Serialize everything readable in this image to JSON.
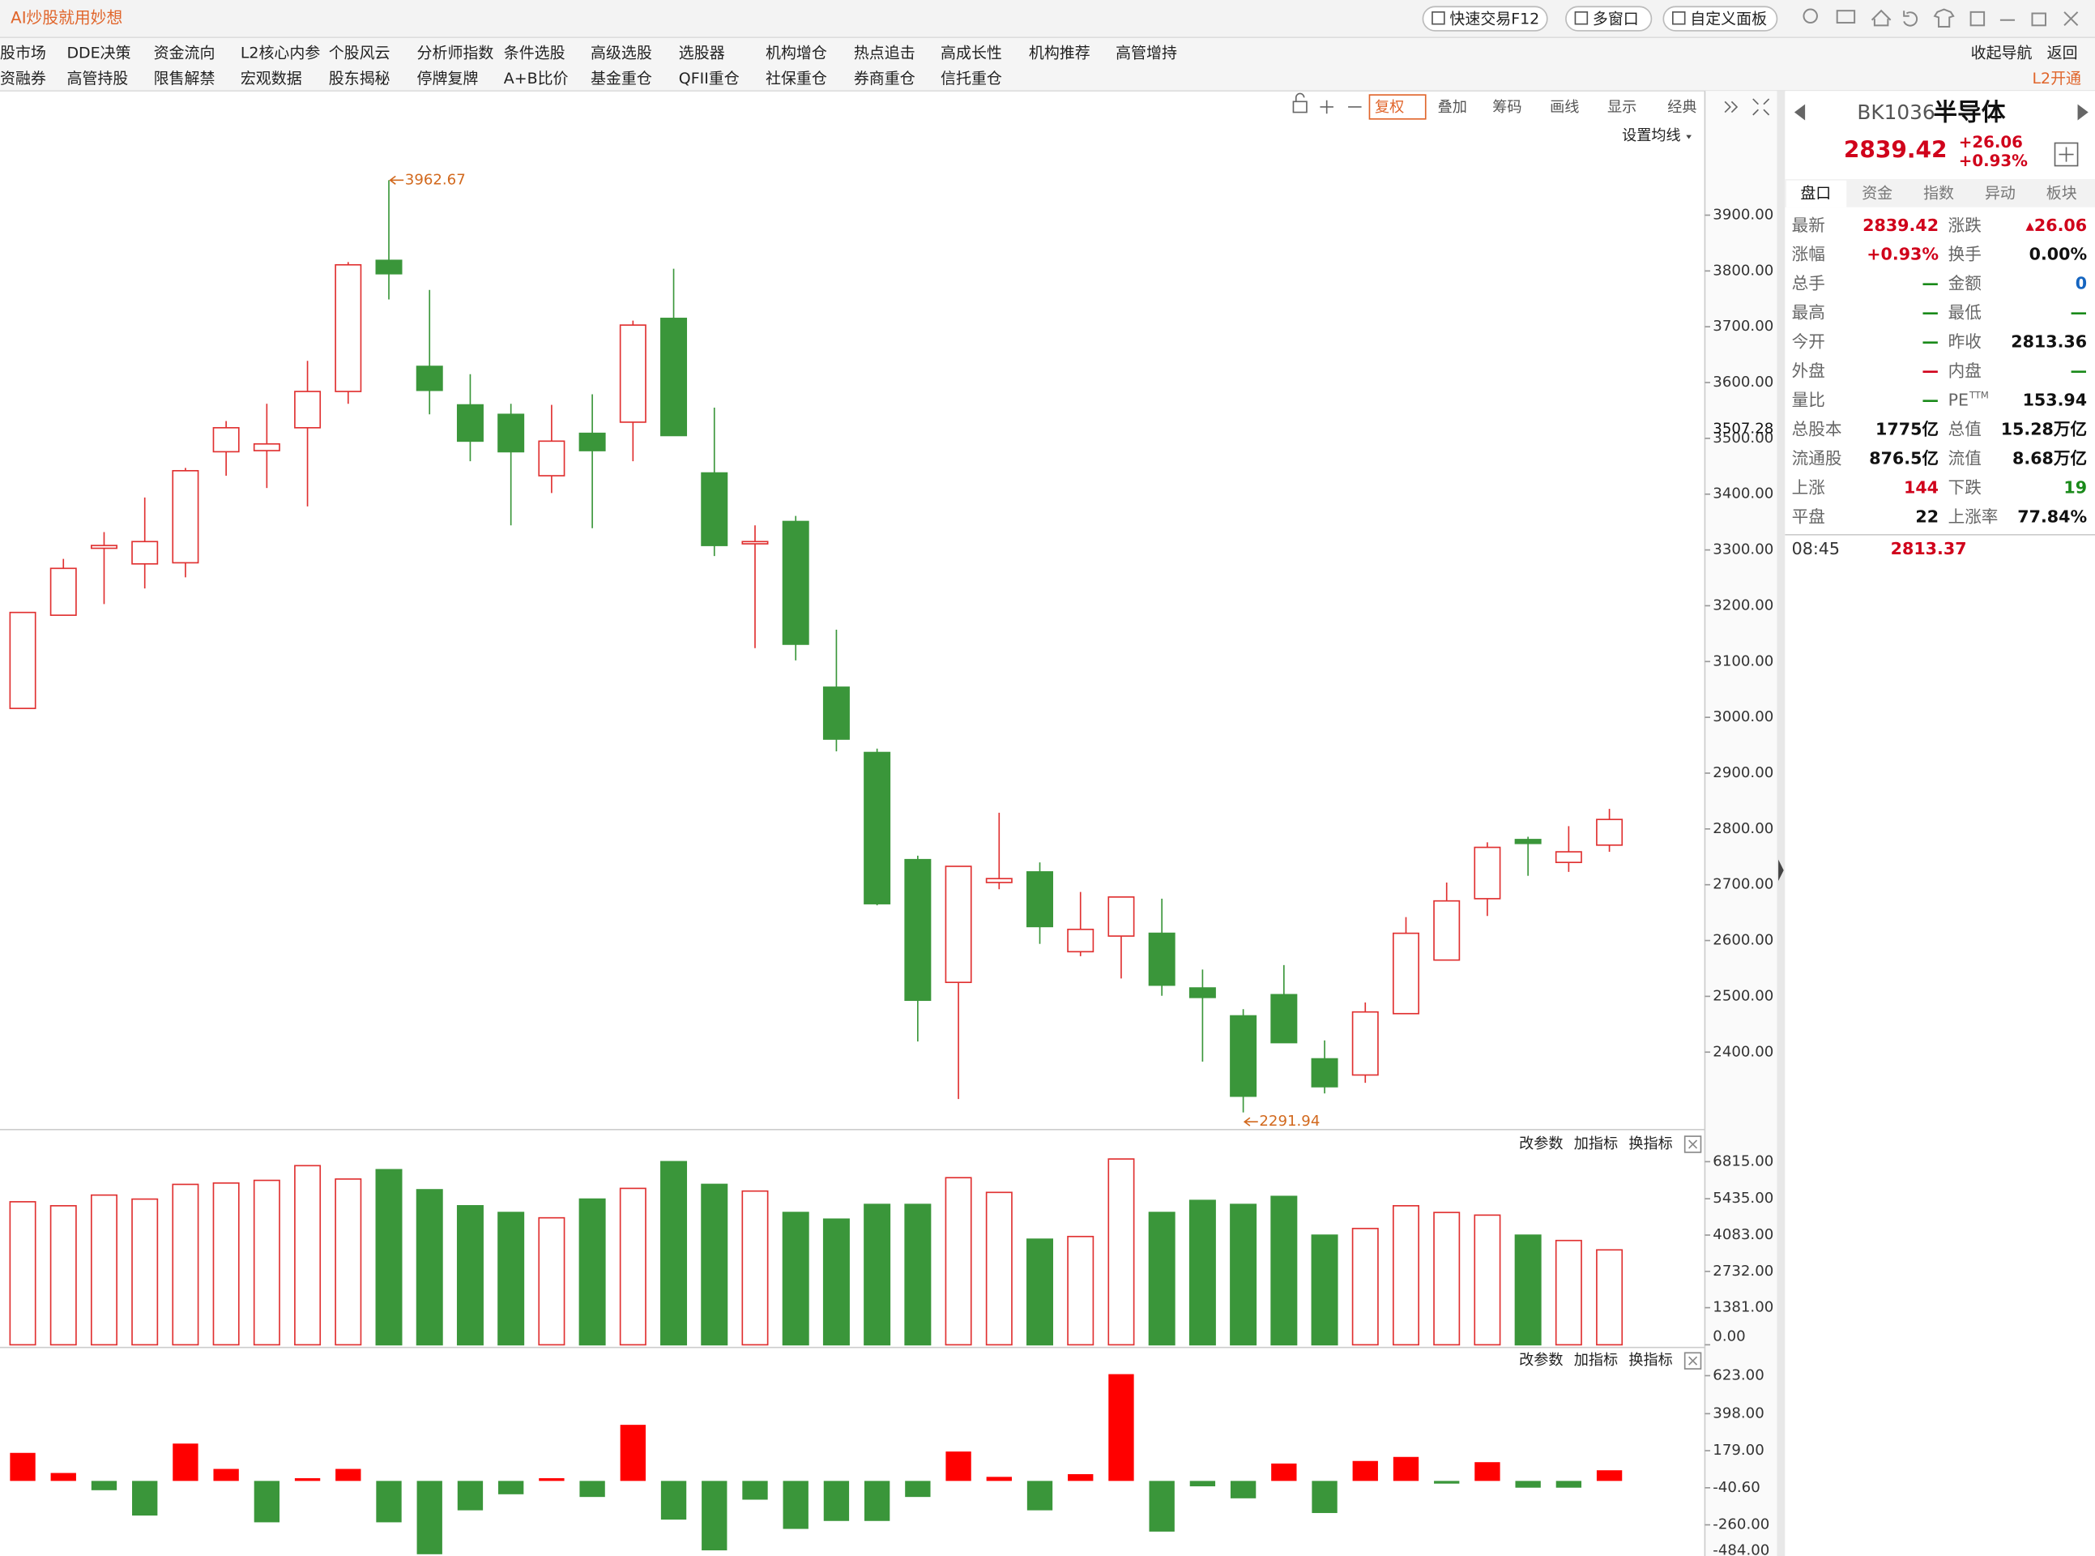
{
  "header": {
    "brand": "AI炒股就用妙想",
    "buttons": [
      "快速交易F12",
      "多窗口",
      "自定义面板"
    ]
  },
  "menu": {
    "row1": [
      "股市场",
      "DDE决策",
      "资金流向",
      "L2核心内参",
      "个股风云",
      "分析师指数",
      "条件选股",
      "高级选股",
      "选股器",
      "机构增仓",
      "热点追击",
      "高成长性",
      "机构推荐",
      "高管增持"
    ],
    "row2": [
      "资融券",
      "高管持股",
      "限售解禁",
      "宏观数据",
      "股东揭秘",
      "停牌复牌",
      "A+B比价",
      "基金重仓",
      "QFII重仓",
      "社保重仓",
      "券商重仓",
      "信托重仓"
    ],
    "collapse": "收起导航",
    "back": "返回",
    "l2": "L2开通"
  },
  "toolbar": [
    "复权",
    "叠加",
    "筹码",
    "画线",
    "显示",
    "经典"
  ],
  "ma_setting": "设置均线",
  "chart_data": [
    {
      "type": "candlestick",
      "up_color": "#e03030",
      "down_color": "#3a963a",
      "mark_price": 3507.28,
      "open": [
        3016,
        3183,
        3303,
        3275,
        3277,
        3476,
        3478,
        3519,
        3584,
        3819,
        3629,
        3560,
        3543,
        3433,
        3509,
        3529,
        3715,
        3438,
        3311,
        3351,
        3054,
        2937,
        2745,
        2525,
        2704,
        2723,
        2580,
        2608,
        2613,
        2515,
        2465,
        2503,
        2388,
        2359,
        2469,
        2565,
        2675,
        2781,
        2740,
        2771
      ],
      "high": [
        3188,
        3284,
        3332,
        3394,
        3447,
        3531,
        3562,
        3639,
        3816,
        3962.67,
        3766,
        3615,
        3562,
        3560,
        3579,
        3711,
        3804,
        3555,
        3344,
        3361,
        3157,
        2944,
        2752,
        2733,
        2829,
        2740,
        2687,
        2678,
        2675,
        2548,
        2477,
        2556,
        2421,
        2489,
        2642,
        2704,
        2776,
        2786,
        2805,
        2836
      ],
      "low": [
        3016,
        3183,
        3203,
        3231,
        3251,
        3433,
        3411,
        3378,
        3562,
        3749,
        3543,
        3459,
        3344,
        3402,
        3339,
        3459,
        3505,
        3289,
        3124,
        3102,
        2939,
        2663,
        2419,
        2316,
        2692,
        2594,
        2572,
        2532,
        2501,
        2383,
        2291.94,
        2417,
        2326,
        2345,
        2469,
        2565,
        2644,
        2716,
        2723,
        2759
      ],
      "close": [
        3188,
        3267,
        3308,
        3315,
        3442,
        3519,
        3490,
        3584,
        3811,
        3795,
        3586,
        3495,
        3476,
        3495,
        3478,
        3703,
        3505,
        3308,
        3315,
        3131,
        2961,
        2666,
        2493,
        2733,
        2711,
        2625,
        2620,
        2678,
        2520,
        2498,
        2321,
        2417,
        2338,
        2472,
        2613,
        2671,
        2767,
        2774,
        2759,
        2817
      ],
      "ylim": [
        2266,
        4058
      ],
      "yticks": [
        {
          "value": 2400,
          "label": "2400.00"
        },
        {
          "value": 2500,
          "label": "2500.00"
        },
        {
          "value": 2600,
          "label": "2600.00"
        },
        {
          "value": 2700,
          "label": "2700.00"
        },
        {
          "value": 2800,
          "label": "2800.00"
        },
        {
          "value": 2900,
          "label": "2900.00"
        },
        {
          "value": 3000,
          "label": "3000.00"
        },
        {
          "value": 3100,
          "label": "3100.00"
        },
        {
          "value": 3200,
          "label": "3200.00"
        },
        {
          "value": 3300,
          "label": "3300.00"
        },
        {
          "value": 3400,
          "label": "3400.00"
        },
        {
          "value": 3500,
          "label": "3500.00"
        },
        {
          "value": 3600,
          "label": "3600.00"
        },
        {
          "value": 3700,
          "label": "3700.00"
        },
        {
          "value": 3800,
          "label": "3800.00"
        },
        {
          "value": 3900,
          "label": "3900.00"
        }
      ]
    },
    {
      "type": "bar",
      "buttons": [
        "改参数",
        "加指标",
        "换指标"
      ],
      "values": [
        5323,
        5174,
        5572,
        5423,
        5970,
        6020,
        6119,
        6667,
        6169,
        6517,
        5771,
        5174,
        4925,
        4726,
        5423,
        5821,
        6816,
        5970,
        5721,
        4925,
        4677,
        5224,
        5224,
        6219,
        5672,
        3930,
        4030,
        6915,
        4925,
        5373,
        5224,
        5522,
        4080,
        4328,
        5174,
        4925,
        4826,
        4080,
        3881,
        3532
      ],
      "ylim": [
        0,
        7164
      ],
      "yticks": [
        {
          "value": 0,
          "label": "0.00"
        },
        {
          "value": 1381,
          "label": "1381.00"
        },
        {
          "value": 2732,
          "label": "2732.00"
        },
        {
          "value": 4083,
          "label": "4083.00"
        },
        {
          "value": 5435,
          "label": "5435.00"
        },
        {
          "value": 6815,
          "label": "6815.00"
        }
      ]
    },
    {
      "type": "bar",
      "buttons": [
        "改参数",
        "加指标",
        "换指标"
      ],
      "up_color": "#ff0000",
      "down_color": "#3a963a",
      "values": [
        166,
        47,
        -55,
        -205,
        221,
        71,
        -245,
        16,
        71,
        -245,
        -434,
        -174,
        -79,
        16,
        -95,
        332,
        -229,
        -411,
        -111,
        -284,
        -237,
        -237,
        -95,
        174,
        24,
        -174,
        40,
        632,
        -300,
        -32,
        -103,
        103,
        -190,
        118,
        142,
        -16,
        111,
        -40,
        -40,
        63
      ],
      "ylim": [
        -484,
        695
      ],
      "yticks": [
        {
          "value": -484,
          "label": "-484.00"
        },
        {
          "value": -260,
          "label": "-260.00"
        },
        {
          "value": -40.6,
          "label": "-40.60"
        },
        {
          "value": 179,
          "label": "179.00"
        },
        {
          "value": 398,
          "label": "398.00"
        },
        {
          "value": 623,
          "label": "623.00"
        }
      ]
    }
  ],
  "quote": {
    "code": "BK1036",
    "name": "半导体",
    "price": "2839.42",
    "change": "+26.06",
    "pct": "+0.93%",
    "tabs": [
      "盘口",
      "资金",
      "指数",
      "异动",
      "板块"
    ],
    "rows": [
      [
        {
          "label": "最新",
          "value": "2839.42",
          "color": "#d0021b"
        },
        {
          "label": "涨跌",
          "value": "▴26.06",
          "color": "#d0021b"
        }
      ],
      [
        {
          "label": "涨幅",
          "value": "+0.93%",
          "color": "#d0021b"
        },
        {
          "label": "换手",
          "value": "0.00%",
          "color": "#111111"
        }
      ],
      [
        {
          "label": "总手",
          "value": "—",
          "color": "#1a8a1a"
        },
        {
          "label": "金额",
          "value": "0",
          "color": "#1565c0"
        }
      ],
      [
        {
          "label": "最高",
          "value": "—",
          "color": "#1a8a1a"
        },
        {
          "label": "最低",
          "value": "—",
          "color": "#1a8a1a"
        }
      ],
      [
        {
          "label": "今开",
          "value": "—",
          "color": "#1a8a1a"
        },
        {
          "label": "昨收",
          "value": "2813.36",
          "color": "#111111"
        }
      ],
      [
        {
          "label": "外盘",
          "value": "—",
          "color": "#d0021b"
        },
        {
          "label": "内盘",
          "value": "—",
          "color": "#1a8a1a"
        }
      ],
      [
        {
          "label": "量比",
          "value": "—",
          "color": "#1a8a1a"
        },
        {
          "label": "PE",
          "sup": "TTM",
          "value": "153.94",
          "color": "#111111"
        }
      ],
      [
        {
          "label": "总股本",
          "value": "1775亿",
          "color": "#111111"
        },
        {
          "label": "总值",
          "value": "15.28万亿",
          "color": "#111111"
        }
      ],
      [
        {
          "label": "流通股",
          "value": "876.5亿",
          "color": "#111111"
        },
        {
          "label": "流值",
          "value": "8.68万亿",
          "color": "#111111"
        }
      ],
      [
        {
          "label": "上涨",
          "value": "144",
          "color": "#d0021b"
        },
        {
          "label": "下跌",
          "value": "19",
          "color": "#1a8a1a"
        }
      ],
      [
        {
          "label": "平盘",
          "value": "22",
          "color": "#111111"
        },
        {
          "label": "上涨率",
          "value": "77.84%",
          "color": "#111111"
        }
      ]
    ],
    "tick_time": "08:45",
    "tick_price": "2813.37"
  }
}
